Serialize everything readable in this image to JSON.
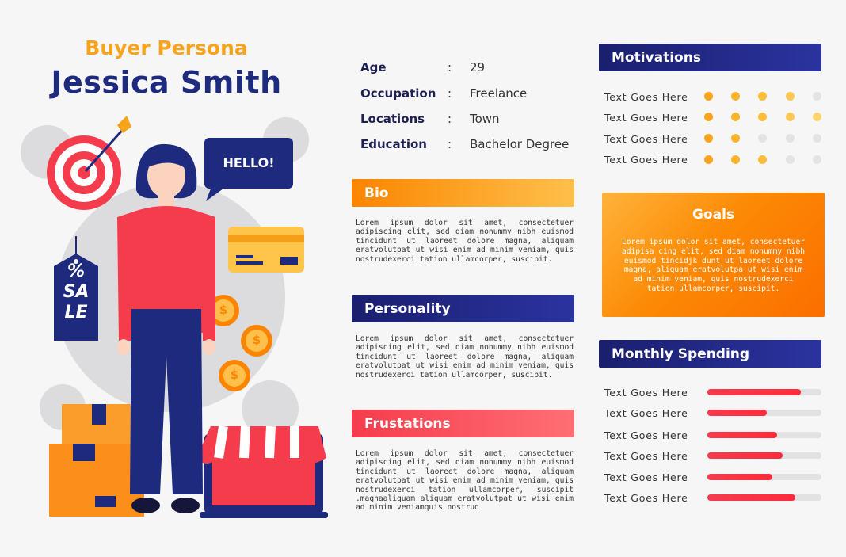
{
  "header": {
    "subtitle": "Buyer Persona",
    "name": "Jessica Smith"
  },
  "info": [
    {
      "key": "Age",
      "sep": ":",
      "value": "29"
    },
    {
      "key": "Occupation",
      "sep": ":",
      "value": "Freelance"
    },
    {
      "key": "Locations",
      "sep": ":",
      "value": "Town"
    },
    {
      "key": "Education",
      "sep": ":",
      "value": "Bachelor Degree"
    }
  ],
  "bio": {
    "title": "Bio",
    "text": "Lorem ipsum dolor sit amet, consectetuer adipiscing elit, sed diam nonummy nibh euismod tincidunt ut laoreet dolore magna, aliquam eratvolutpat ut wisi enim ad minim veniam, quis nostrudexerci tation ullamcorper, suscipit."
  },
  "personality": {
    "title": "Personality",
    "text": "Lorem ipsum dolor sit amet, consectetuer adipiscing elit, sed diam nonummy nibh euismod tincidunt ut laoreet dolore magna, aliquam eratvolutpat ut wisi enim ad minim veniam, quis nostrudexerci tation ullamcorper, suscipit."
  },
  "frustations": {
    "title": "Frustations",
    "text": "Lorem ipsum dolor sit amet, consectetuer adipiscing elit, sed diam nonummy nibh euismod tincidunt ut laoreet dolore magna, aliquam eratvolutpat ut wisi enim ad minim veniam, quis nostrudexerci tation ullamcorper, suscipit .magnaaliquam aliquam eratvolutpat ut wisi enim ad minim veniamquis nostrud"
  },
  "motivations": {
    "title": "Motivations",
    "rows": [
      {
        "label": "Text Goes Here",
        "rating": 4
      },
      {
        "label": "Text Goes Here",
        "rating": 5
      },
      {
        "label": "Text Goes Here",
        "rating": 2
      },
      {
        "label": "Text Goes Here",
        "rating": 3
      }
    ],
    "max": 5
  },
  "goals": {
    "title": "Goals",
    "text": "Lorem ipsum dolor sit amet, consectetuer adipisa cing elit, sed diam nonummy nibh euismod tincidjk dunt ut laoreet dolore magna, aliquam eratvolutpa ut wisi enim ad minim veniam, quis nostrudexerci tation ullamcorper, suscipit."
  },
  "spending": {
    "title": "Monthly Spending",
    "rows": [
      {
        "label": "Text Goes Here",
        "fraction": 0.82
      },
      {
        "label": "Text Goes Here",
        "fraction": 0.52
      },
      {
        "label": "Text Goes Here",
        "fraction": 0.61
      },
      {
        "label": "Text Goes Here",
        "fraction": 0.66
      },
      {
        "label": "Text Goes Here",
        "fraction": 0.57
      },
      {
        "label": "Text Goes Here",
        "fraction": 0.77
      }
    ]
  },
  "illustration": {
    "speech_bubble": "HELLO!",
    "tag_line1": "%",
    "tag_line2": "SA",
    "tag_line3": "LE",
    "coin_symbol": "$"
  },
  "colors": {
    "navy": "#1e2a7e",
    "orange": "#fb8500",
    "yellow": "#f7a41c",
    "red": "#f53c4d",
    "dot_empty": "#e3e3e5"
  }
}
